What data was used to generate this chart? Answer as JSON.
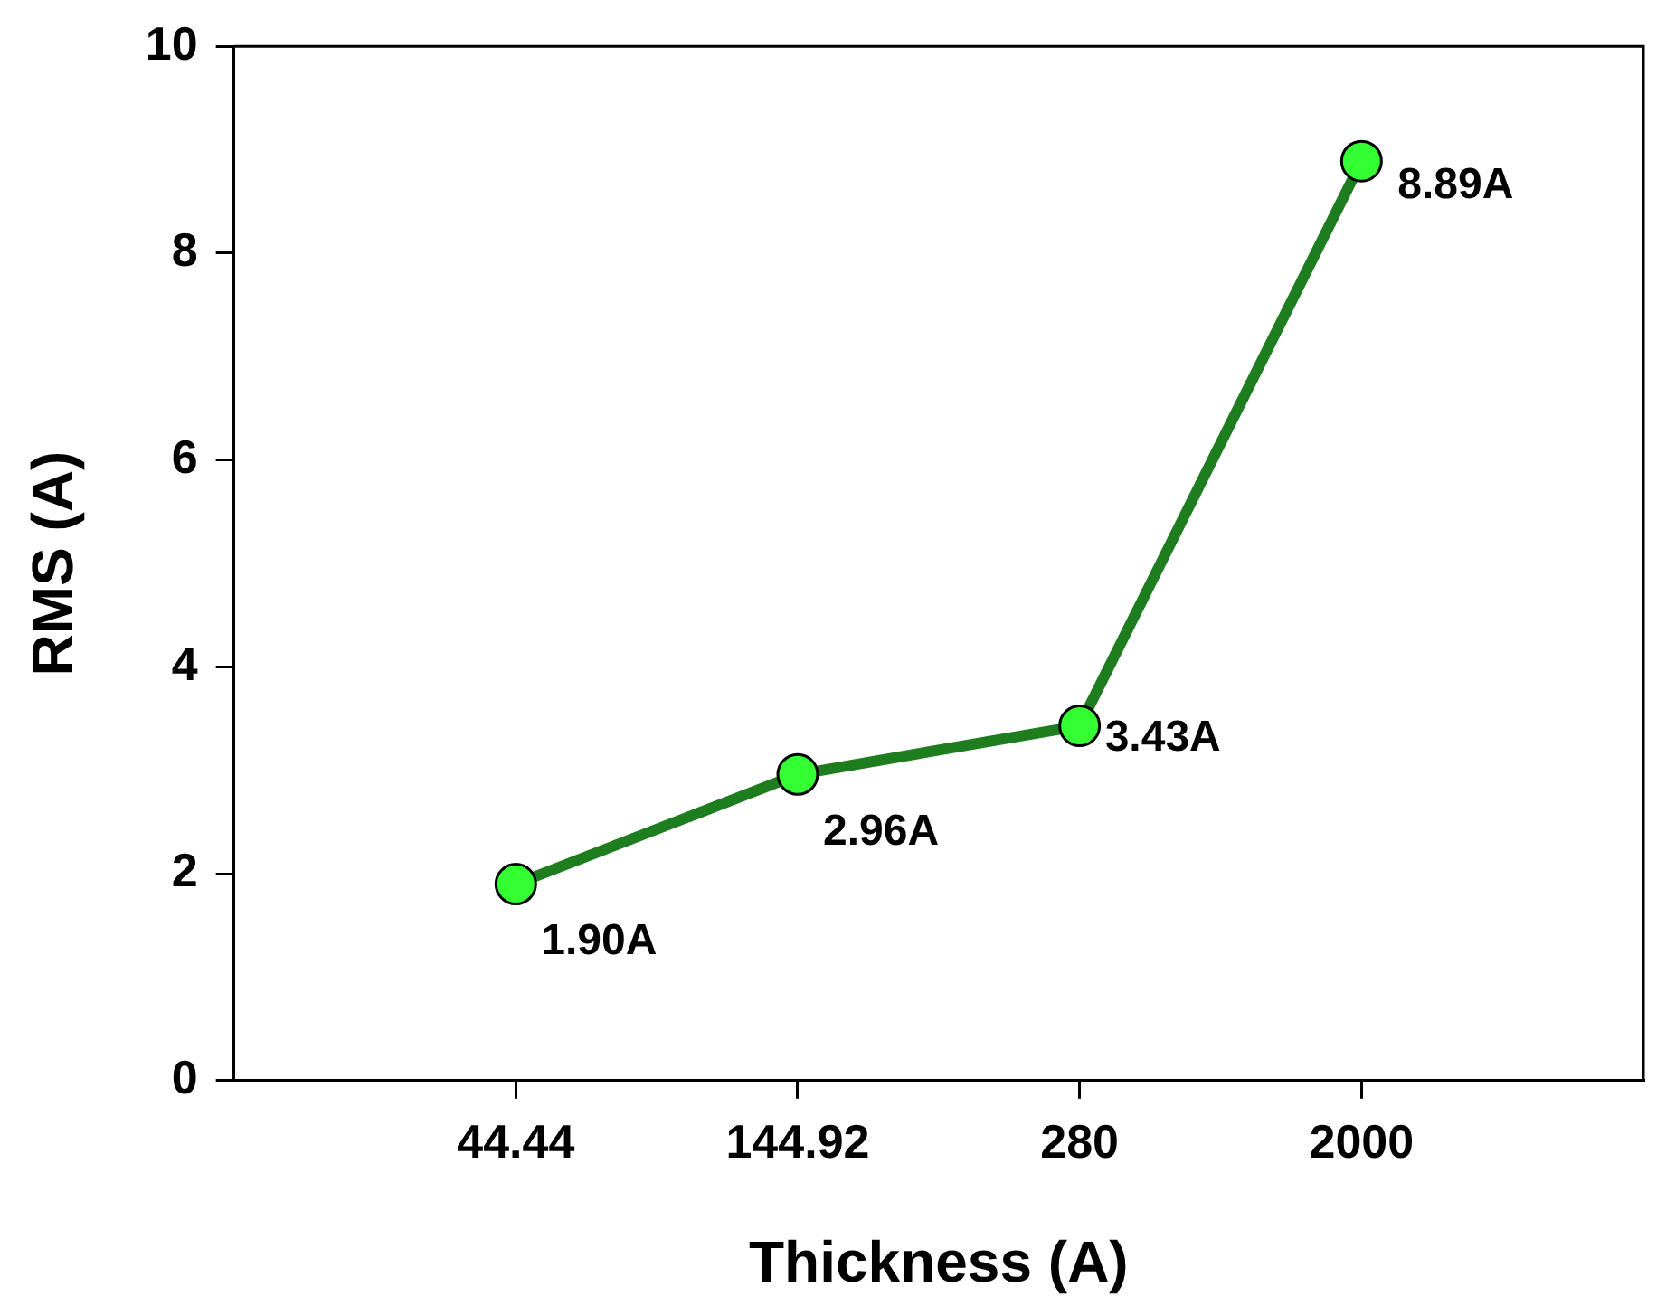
{
  "chart_data": {
    "type": "line",
    "xlabel": "Thickness (A)",
    "ylabel": "RMS (A)",
    "categories": [
      "44.44",
      "144.92",
      "280",
      "2000"
    ],
    "series": [
      {
        "color": "#1e7d1e",
        "values": [
          1.9,
          2.96,
          3.43,
          8.89
        ],
        "value_labels": [
          "1.90A",
          "2.96A",
          "3.43A",
          "8.89A"
        ]
      }
    ],
    "marker": "circle",
    "line_style": "solid",
    "grid": false,
    "legend": false,
    "ylim": [
      0,
      10
    ],
    "yticks": [
      0,
      2,
      4,
      6,
      8,
      10
    ]
  }
}
